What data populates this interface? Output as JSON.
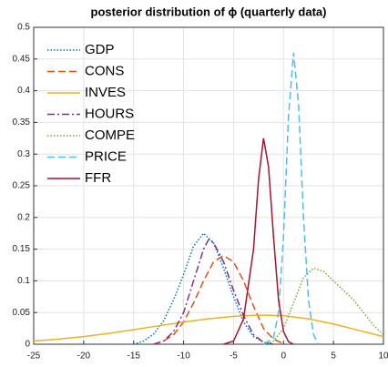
{
  "chart_data": {
    "type": "line",
    "title": "posterior distribution of ϕ (quarterly data)",
    "xlim": [
      -25,
      10
    ],
    "xticks": [
      -25,
      -20,
      -15,
      -10,
      -5,
      0,
      5,
      10
    ],
    "ylim": [
      0,
      0.5
    ],
    "yticks": [
      0,
      0.05,
      0.1,
      0.15,
      0.2,
      0.25,
      0.3,
      0.35,
      0.4,
      0.45,
      0.5
    ],
    "grid": true,
    "legend": "upper-left",
    "series": [
      {
        "name": "GDP",
        "color": "#0072BD",
        "linestyle": "dotted",
        "x": [
          -15,
          -14,
          -13,
          -12,
          -11,
          -10,
          -9,
          -8,
          -7,
          -6,
          -5,
          -4,
          -3,
          -2,
          -1
        ],
        "values": [
          0,
          0.005,
          0.016,
          0.037,
          0.07,
          0.11,
          0.155,
          0.175,
          0.16,
          0.12,
          0.075,
          0.035,
          0.012,
          0.003,
          0
        ]
      },
      {
        "name": "CONS",
        "color": "#D95319",
        "linestyle": "dashed",
        "x": [
          -13,
          -12,
          -11,
          -10,
          -9,
          -8,
          -7,
          -6,
          -5,
          -4,
          -3,
          -2,
          -1,
          0
        ],
        "values": [
          0,
          0.005,
          0.015,
          0.035,
          0.065,
          0.1,
          0.13,
          0.14,
          0.13,
          0.1,
          0.06,
          0.025,
          0.008,
          0.001
        ]
      },
      {
        "name": "INVES",
        "color": "#EDB120",
        "linestyle": "solid",
        "x": [
          -25,
          -22.5,
          -20,
          -17.5,
          -15,
          -12.5,
          -10,
          -7.5,
          -5,
          -2.5,
          0,
          2.5,
          5,
          7.5,
          10
        ],
        "values": [
          0.005,
          0.008,
          0.012,
          0.017,
          0.023,
          0.029,
          0.035,
          0.04,
          0.044,
          0.046,
          0.045,
          0.04,
          0.032,
          0.022,
          0.012
        ]
      },
      {
        "name": "HOURS",
        "color": "#7E2F8E",
        "linestyle": "dashdot",
        "x": [
          -13,
          -12,
          -11,
          -10,
          -9,
          -8,
          -7.5,
          -7,
          -6,
          -5,
          -4,
          -3,
          -2,
          -1
        ],
        "values": [
          0,
          0.005,
          0.02,
          0.05,
          0.1,
          0.15,
          0.165,
          0.16,
          0.13,
          0.085,
          0.045,
          0.015,
          0.003,
          0
        ]
      },
      {
        "name": "COMPE",
        "color": "#77AC30",
        "linestyle": "dotted",
        "x": [
          -2,
          -1,
          0,
          1,
          2,
          3,
          4,
          5,
          6,
          7,
          8,
          9,
          10
        ],
        "values": [
          0,
          0.005,
          0.025,
          0.065,
          0.105,
          0.12,
          0.115,
          0.1,
          0.085,
          0.07,
          0.05,
          0.03,
          0.015
        ]
      },
      {
        "name": "PRICE",
        "color": "#4DBEEE",
        "linestyle": "dashed",
        "x": [
          -2,
          -1,
          -0.5,
          0,
          0.5,
          1,
          1.5,
          2,
          2.5,
          3,
          3.5
        ],
        "values": [
          0,
          0.01,
          0.05,
          0.17,
          0.36,
          0.46,
          0.38,
          0.2,
          0.07,
          0.015,
          0
        ]
      },
      {
        "name": "FFR",
        "color": "#A2142F",
        "linestyle": "solid",
        "x": [
          -6,
          -5,
          -4,
          -3,
          -2.5,
          -2,
          -1.5,
          -1,
          -0.5,
          0,
          0.5,
          1
        ],
        "values": [
          0,
          0.005,
          0.04,
          0.15,
          0.26,
          0.325,
          0.28,
          0.17,
          0.07,
          0.02,
          0.004,
          0
        ]
      }
    ]
  }
}
